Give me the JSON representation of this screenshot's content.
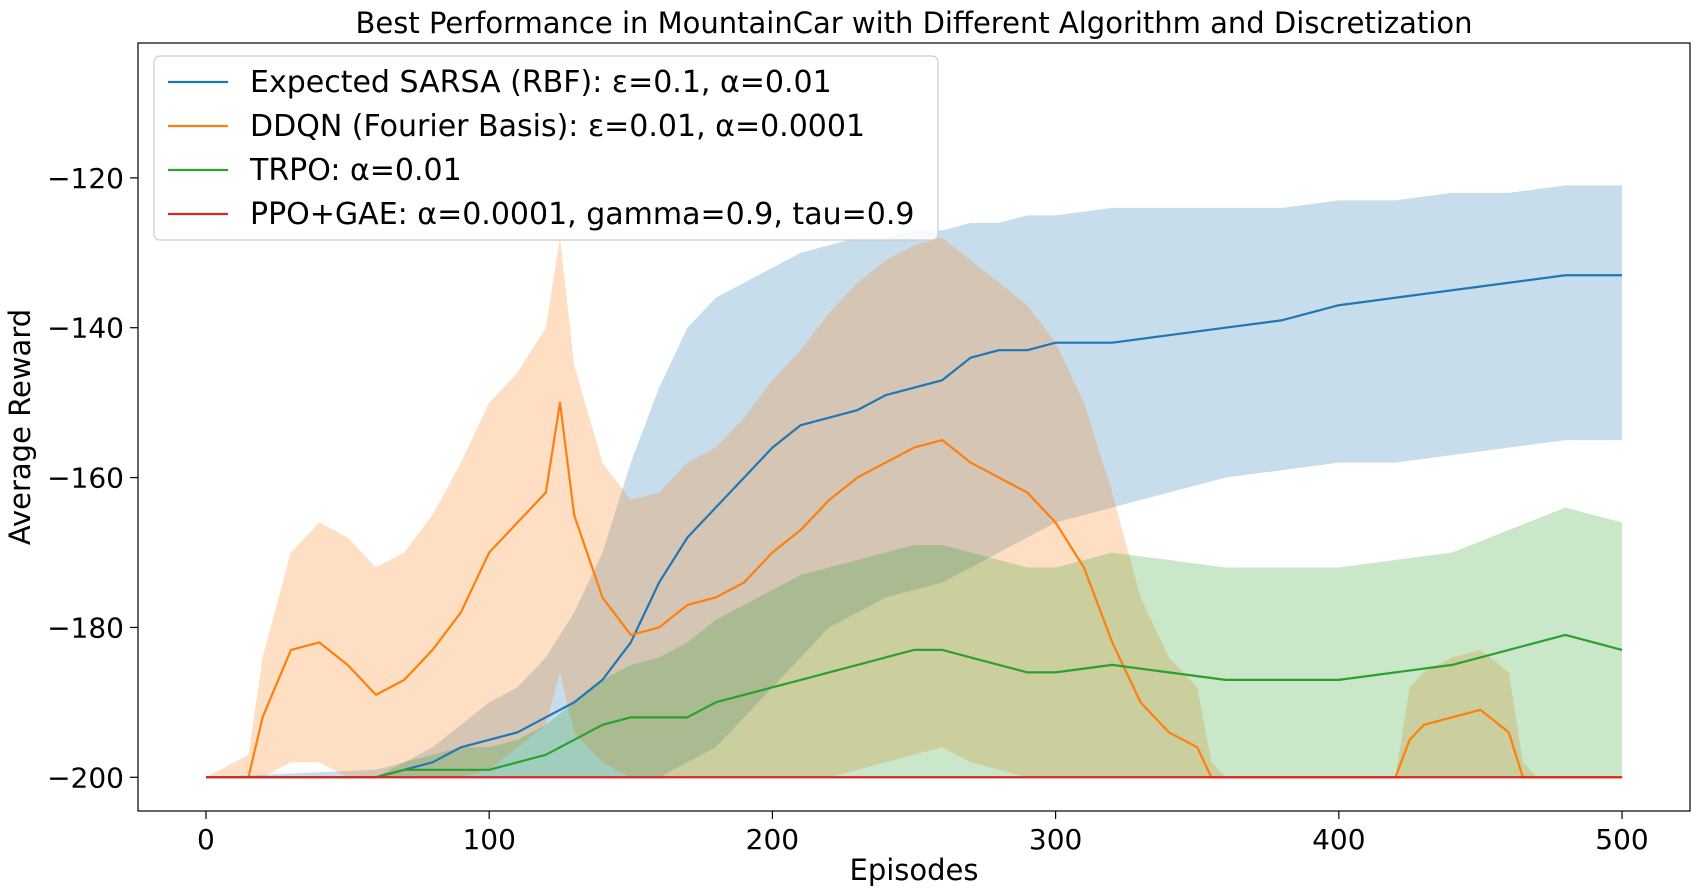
{
  "chart_data": {
    "type": "line",
    "title": "Best Performance in MountainCar with Different Algorithm and Discretization",
    "xlabel": "Episodes",
    "ylabel": "Average Reward",
    "xlim": [
      -24,
      524
    ],
    "ylim": [
      -204.5,
      -102
    ],
    "xticks": [
      0,
      100,
      200,
      300,
      400,
      500
    ],
    "yticks": [
      -200,
      -180,
      -160,
      -140,
      -120
    ],
    "xtick_labels": [
      "0",
      "100",
      "200",
      "300",
      "400",
      "500"
    ],
    "ytick_labels": [
      "−200",
      "−180",
      "−160",
      "−140",
      "−120"
    ],
    "grid": false,
    "legend_position": "top-left",
    "series": [
      {
        "name": "Expected SARSA (RBF): ε=0.1, α=0.01",
        "color": "#1f77b4",
        "x": [
          0,
          60,
          70,
          80,
          90,
          100,
          110,
          120,
          130,
          140,
          150,
          160,
          170,
          180,
          190,
          200,
          210,
          220,
          230,
          240,
          250,
          260,
          270,
          280,
          290,
          300,
          320,
          340,
          360,
          380,
          400,
          420,
          440,
          460,
          480,
          500
        ],
        "y": [
          -200,
          -200,
          -199,
          -198,
          -196,
          -195,
          -194,
          -192,
          -190,
          -187,
          -182,
          -174,
          -168,
          -164,
          -160,
          -156,
          -153,
          -152,
          -151,
          -149,
          -148,
          -147,
          -144,
          -143,
          -143,
          -142,
          -142,
          -141,
          -140,
          -139,
          -137,
          -136,
          -135,
          -134,
          -133,
          -133
        ],
        "band_upper": [
          -200,
          -199,
          -198,
          -196,
          -193,
          -190,
          -188,
          -184,
          -178,
          -170,
          -158,
          -148,
          -140,
          -136,
          -134,
          -132,
          -130,
          -129,
          -128,
          -128,
          -127,
          -127,
          -126,
          -126,
          -125,
          -125,
          -124,
          -124,
          -124,
          -124,
          -123,
          -123,
          -122,
          -122,
          -121,
          -121
        ],
        "band_lower": [
          -200,
          -200,
          -200,
          -200,
          -200,
          -200,
          -200,
          -200,
          -200,
          -200,
          -200,
          -200,
          -198,
          -196,
          -192,
          -188,
          -184,
          -180,
          -178,
          -176,
          -175,
          -174,
          -172,
          -170,
          -168,
          -166,
          -164,
          -162,
          -160,
          -159,
          -158,
          -158,
          -157,
          -156,
          -155,
          -155
        ]
      },
      {
        "name": "DDQN (Fourier Basis): ε=0.01, α=0.0001",
        "color": "#ff7f0e",
        "x": [
          0,
          15,
          20,
          30,
          40,
          50,
          60,
          70,
          80,
          90,
          100,
          110,
          120,
          125,
          130,
          140,
          150,
          160,
          170,
          180,
          190,
          200,
          210,
          220,
          230,
          240,
          250,
          260,
          270,
          280,
          290,
          300,
          310,
          320,
          330,
          340,
          350,
          355,
          360,
          420,
          425,
          430,
          440,
          450,
          460,
          465,
          470,
          500
        ],
        "y": [
          -200,
          -200,
          -192,
          -183,
          -182,
          -185,
          -189,
          -187,
          -183,
          -178,
          -170,
          -166,
          -162,
          -150,
          -165,
          -176,
          -181,
          -180,
          -177,
          -176,
          -174,
          -170,
          -167,
          -163,
          -160,
          -158,
          -156,
          -155,
          -158,
          -160,
          -162,
          -166,
          -172,
          -182,
          -190,
          -194,
          -196,
          -200,
          -200,
          -200,
          -195,
          -193,
          -192,
          -191,
          -194,
          -200,
          -200,
          -200
        ],
        "band_upper": [
          -200,
          -197,
          -184,
          -170,
          -166,
          -168,
          -172,
          -170,
          -165,
          -158,
          -150,
          -146,
          -140,
          -128,
          -145,
          -158,
          -163,
          -162,
          -158,
          -156,
          -152,
          -147,
          -143,
          -138,
          -134,
          -131,
          -129,
          -128,
          -131,
          -134,
          -137,
          -142,
          -150,
          -162,
          -176,
          -184,
          -188,
          -198,
          -200,
          -200,
          -188,
          -186,
          -184,
          -183,
          -186,
          -198,
          -200,
          -200
        ],
        "band_lower": [
          -200,
          -200,
          -200,
          -198,
          -198,
          -200,
          -200,
          -200,
          -200,
          -200,
          -199,
          -196,
          -193,
          -186,
          -194,
          -198,
          -200,
          -200,
          -200,
          -200,
          -200,
          -200,
          -200,
          -200,
          -199,
          -198,
          -197,
          -196,
          -198,
          -199,
          -200,
          -200,
          -200,
          -200,
          -200,
          -200,
          -200,
          -200,
          -200,
          -200,
          -200,
          -200,
          -200,
          -200,
          -200,
          -200,
          -200,
          -200
        ]
      },
      {
        "name": "TRPO: α=0.01",
        "color": "#2ca02c",
        "x": [
          0,
          60,
          70,
          80,
          90,
          100,
          110,
          120,
          130,
          140,
          150,
          160,
          170,
          180,
          190,
          200,
          210,
          220,
          230,
          240,
          250,
          260,
          270,
          280,
          290,
          300,
          320,
          340,
          360,
          380,
          400,
          420,
          440,
          460,
          480,
          500
        ],
        "y": [
          -200,
          -200,
          -199,
          -199,
          -199,
          -199,
          -198,
          -197,
          -195,
          -193,
          -192,
          -192,
          -192,
          -190,
          -189,
          -188,
          -187,
          -186,
          -185,
          -184,
          -183,
          -183,
          -184,
          -185,
          -186,
          -186,
          -185,
          -186,
          -187,
          -187,
          -187,
          -186,
          -185,
          -183,
          -181,
          -183
        ],
        "band_upper": [
          -200,
          -200,
          -198,
          -197,
          -196,
          -196,
          -195,
          -193,
          -190,
          -187,
          -185,
          -184,
          -182,
          -179,
          -177,
          -175,
          -173,
          -172,
          -171,
          -170,
          -169,
          -169,
          -170,
          -171,
          -172,
          -172,
          -170,
          -171,
          -172,
          -172,
          -172,
          -171,
          -170,
          -167,
          -164,
          -166
        ],
        "band_lower": [
          -200,
          -200,
          -200,
          -200,
          -200,
          -200,
          -200,
          -200,
          -200,
          -200,
          -200,
          -200,
          -200,
          -200,
          -200,
          -200,
          -200,
          -200,
          -200,
          -200,
          -200,
          -200,
          -200,
          -200,
          -200,
          -200,
          -200,
          -200,
          -200,
          -200,
          -200,
          -200,
          -200,
          -200,
          -200,
          -200
        ]
      },
      {
        "name": "PPO+GAE: α=0.0001, gamma=0.9, tau=0.9",
        "color": "#d62728",
        "x": [
          0,
          500
        ],
        "y": [
          -200,
          -200
        ],
        "band_upper": [
          -200,
          -200
        ],
        "band_lower": [
          -200,
          -200
        ]
      }
    ]
  }
}
